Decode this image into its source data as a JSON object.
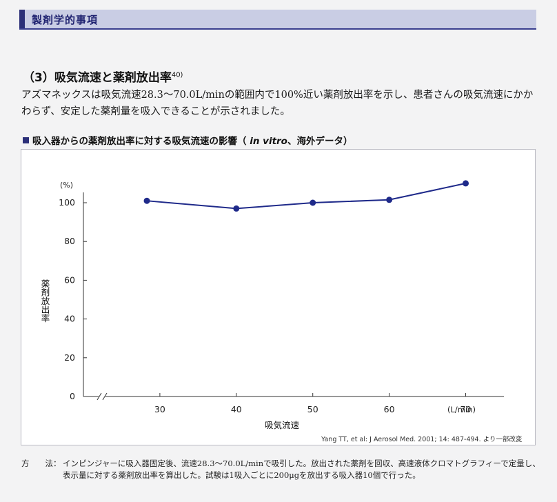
{
  "header": {
    "title": "製剤学的事項"
  },
  "section": {
    "heading": "（3）吸気流速と薬剤放出率",
    "ref": "40)",
    "body": "アズマネックスは吸気流速28.3〜70.0L/minの範囲内で100%近い薬剤放出率を示し、患者さんの吸気流速にかかわらず、安定した薬剤量を吸入できることが示されました。"
  },
  "chart_caption": {
    "prefix": "吸入器からの薬剤放出率に対する吸気流速の影響（",
    "italic": " in vitro",
    "suffix": "、海外データ）"
  },
  "chart_data": {
    "type": "line",
    "x": [
      28.3,
      40,
      50,
      60,
      70
    ],
    "series": [
      {
        "values": [
          101,
          97,
          100,
          101.5,
          110
        ]
      }
    ],
    "xlabel": "吸気流速",
    "ylabel": "薬剤放出率",
    "x_unit": "(L/min)",
    "y_unit": "(%)",
    "x_ticks": [
      30,
      40,
      50,
      60,
      70
    ],
    "y_ticks": [
      0,
      20,
      40,
      60,
      80,
      100
    ],
    "xlim": [
      20,
      75
    ],
    "ylim": [
      0,
      110
    ],
    "x_axis_break": true,
    "grid": false,
    "line_color": "#1f2a8a"
  },
  "source": "Yang TT, et al: J Aerosol Med. 2001; 14: 487-494. より一部改変",
  "method": {
    "label": "方　　法：",
    "text": "インピンジャーに吸入器固定後、流速28.3〜70.0L/minで吸引した。放出された薬剤を回収、高速液体クロマトグラフィーで定量し、表示量に対する薬剤放出率を算出した。試験は1吸入ごとに200μgを放出する吸入器10個で行った。"
  }
}
